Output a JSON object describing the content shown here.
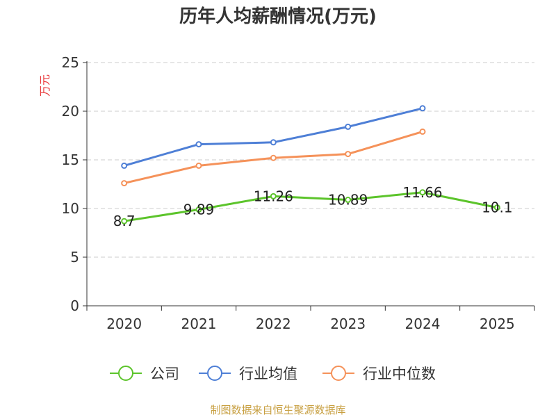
{
  "chart_data": {
    "type": "line",
    "title": "历年人均薪酬情况(万元)",
    "ylabel": "万元",
    "xlabel": "",
    "categories": [
      "2020",
      "2021",
      "2022",
      "2023",
      "2024",
      "2025"
    ],
    "ylim": [
      0,
      25
    ],
    "yticks": [
      0,
      5,
      10,
      15,
      20,
      25
    ],
    "grid": true,
    "legend_position": "bottom",
    "series": [
      {
        "name": "公司",
        "color": "#5cc42b",
        "values": [
          8.7,
          9.89,
          11.26,
          10.89,
          11.66,
          10.1
        ],
        "labels": [
          "8.7",
          "9.89",
          "11.26",
          "10.89",
          "11.66",
          "10.1"
        ]
      },
      {
        "name": "行业均值",
        "color": "#4e7fd6",
        "values": [
          14.4,
          16.6,
          16.8,
          18.4,
          20.3,
          null
        ]
      },
      {
        "name": "行业中位数",
        "color": "#f5925a",
        "values": [
          12.6,
          14.4,
          15.2,
          15.6,
          17.9,
          null
        ]
      }
    ]
  },
  "colors": {
    "axis": "#333333",
    "grid": "#cccccc",
    "ylabel": "#e8393b",
    "footer": "#c8a042"
  },
  "footer": "制图数据来自恒生聚源数据库"
}
